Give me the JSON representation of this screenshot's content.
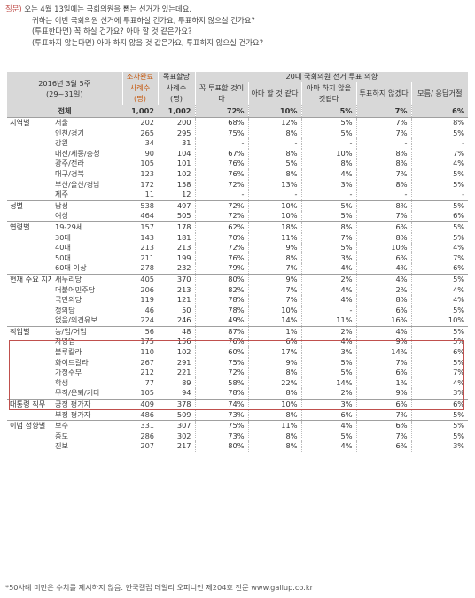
{
  "question": {
    "label": "질문)",
    "lines": [
      "오는 4월 13일에는 국회의원을 뽑는 선거가 있는데요.",
      "귀하는 이번 국회의원 선거에 투표하실 건가요, 투표하지 않으실 건가요?",
      "(투표한다면) 꼭 하실 건가요? 아마 할 것 같은가요?",
      "(투표하지 않는다면) 아마 하지 않을 것 같은가요, 투표하지 않으실 건가요?"
    ]
  },
  "table": {
    "period": "2016년 3월 5주",
    "period_range": "(29~31일)",
    "col_sample_done": "조사완료",
    "col_sample_done_sub": "사례수",
    "col_sample_done_unit": "(명)",
    "col_target": "목표할당",
    "col_target_sub": "사례수",
    "col_target_unit": "(명)",
    "group_header": "20대 국회의원 선거 투표 의향",
    "answer_cols": [
      "꼭 투표할 것이다",
      "아마 할 것 같다",
      "아마 하지 않을것같다",
      "투표하지 않겠다",
      "모름/ 응답거절"
    ],
    "total": {
      "label": "전체",
      "n1": "1,002",
      "n2": "1,002",
      "v": [
        "72%",
        "10%",
        "5%",
        "7%",
        "6%"
      ]
    },
    "sections": [
      {
        "group": "지역별",
        "rows": [
          {
            "label": "서울",
            "n1": "202",
            "n2": "200",
            "v": [
              "68%",
              "12%",
              "5%",
              "7%",
              "8%"
            ]
          },
          {
            "label": "인천/경기",
            "n1": "265",
            "n2": "295",
            "v": [
              "75%",
              "8%",
              "5%",
              "7%",
              "5%"
            ]
          },
          {
            "label": "강원",
            "n1": "34",
            "n2": "31",
            "v": [
              "-",
              "-",
              "-",
              "-",
              "-"
            ]
          },
          {
            "label": "대전/세종/충청",
            "n1": "90",
            "n2": "104",
            "v": [
              "67%",
              "8%",
              "10%",
              "8%",
              "7%"
            ]
          },
          {
            "label": "광주/전라",
            "n1": "105",
            "n2": "101",
            "v": [
              "76%",
              "5%",
              "8%",
              "8%",
              "4%"
            ]
          },
          {
            "label": "대구/경북",
            "n1": "123",
            "n2": "102",
            "v": [
              "76%",
              "8%",
              "4%",
              "7%",
              "5%"
            ]
          },
          {
            "label": "부산/울산/경남",
            "n1": "172",
            "n2": "158",
            "v": [
              "72%",
              "13%",
              "3%",
              "8%",
              "5%"
            ]
          },
          {
            "label": "제주",
            "n1": "11",
            "n2": "12",
            "v": [
              "-",
              "-",
              "-",
              "-",
              "-"
            ]
          }
        ]
      },
      {
        "group": "성별",
        "rows": [
          {
            "label": "남성",
            "n1": "538",
            "n2": "497",
            "v": [
              "72%",
              "10%",
              "5%",
              "8%",
              "5%"
            ]
          },
          {
            "label": "여성",
            "n1": "464",
            "n2": "505",
            "v": [
              "72%",
              "10%",
              "5%",
              "7%",
              "6%"
            ]
          }
        ]
      },
      {
        "group": "연령별",
        "rows": [
          {
            "label": "19-29세",
            "n1": "157",
            "n2": "178",
            "v": [
              "62%",
              "18%",
              "8%",
              "6%",
              "5%"
            ]
          },
          {
            "label": "30대",
            "n1": "143",
            "n2": "181",
            "v": [
              "70%",
              "11%",
              "7%",
              "8%",
              "5%"
            ]
          },
          {
            "label": "40대",
            "n1": "213",
            "n2": "213",
            "v": [
              "72%",
              "9%",
              "5%",
              "10%",
              "4%"
            ]
          },
          {
            "label": "50대",
            "n1": "211",
            "n2": "199",
            "v": [
              "76%",
              "8%",
              "3%",
              "6%",
              "7%"
            ]
          },
          {
            "label": "60대 이상",
            "n1": "278",
            "n2": "232",
            "v": [
              "79%",
              "7%",
              "4%",
              "4%",
              "6%"
            ]
          }
        ]
      },
      {
        "group": "현재 주요 지지 정당별",
        "rows": [
          {
            "label": "새누리당",
            "n1": "405",
            "n2": "370",
            "v": [
              "80%",
              "9%",
              "2%",
              "4%",
              "5%"
            ]
          },
          {
            "label": "더불어민주당",
            "n1": "206",
            "n2": "213",
            "v": [
              "82%",
              "7%",
              "4%",
              "2%",
              "4%"
            ]
          },
          {
            "label": "국민의당",
            "n1": "119",
            "n2": "121",
            "v": [
              "78%",
              "7%",
              "4%",
              "8%",
              "4%"
            ]
          },
          {
            "label": "정의당",
            "n1": "46",
            "n2": "50",
            "v": [
              "78%",
              "10%",
              "-",
              "6%",
              "5%"
            ]
          },
          {
            "label": "없음/의견유보",
            "n1": "224",
            "n2": "246",
            "v": [
              "49%",
              "14%",
              "11%",
              "16%",
              "10%"
            ]
          }
        ]
      },
      {
        "group": "직업별",
        "rows": [
          {
            "label": "농/임/어업",
            "n1": "56",
            "n2": "48",
            "v": [
              "87%",
              "1%",
              "2%",
              "4%",
              "5%"
            ]
          },
          {
            "label": "자영업",
            "n1": "175",
            "n2": "156",
            "v": [
              "76%",
              "6%",
              "4%",
              "9%",
              "5%"
            ]
          },
          {
            "label": "블루칼라",
            "n1": "110",
            "n2": "102",
            "v": [
              "60%",
              "17%",
              "3%",
              "14%",
              "6%"
            ]
          },
          {
            "label": "화이트칼라",
            "n1": "267",
            "n2": "291",
            "v": [
              "75%",
              "9%",
              "5%",
              "7%",
              "5%"
            ]
          },
          {
            "label": "가정주부",
            "n1": "212",
            "n2": "221",
            "v": [
              "72%",
              "8%",
              "5%",
              "6%",
              "7%"
            ]
          },
          {
            "label": "학생",
            "n1": "77",
            "n2": "89",
            "v": [
              "58%",
              "22%",
              "14%",
              "1%",
              "4%"
            ]
          },
          {
            "label": "무직/은퇴/기타",
            "n1": "105",
            "n2": "94",
            "v": [
              "78%",
              "8%",
              "2%",
              "9%",
              "3%"
            ]
          }
        ]
      },
      {
        "group": "대통령 직무",
        "rows": [
          {
            "label": "긍정 평가자",
            "n1": "409",
            "n2": "378",
            "v": [
              "74%",
              "10%",
              "3%",
              "6%",
              "6%"
            ]
          },
          {
            "label": "부정 평가자",
            "n1": "486",
            "n2": "509",
            "v": [
              "73%",
              "8%",
              "6%",
              "7%",
              "5%"
            ]
          }
        ]
      },
      {
        "group": "이념 성향별",
        "rows": [
          {
            "label": "보수",
            "n1": "331",
            "n2": "307",
            "v": [
              "75%",
              "11%",
              "4%",
              "6%",
              "5%"
            ]
          },
          {
            "label": "중도",
            "n1": "286",
            "n2": "302",
            "v": [
              "73%",
              "8%",
              "5%",
              "7%",
              "5%"
            ]
          },
          {
            "label": "진보",
            "n1": "207",
            "n2": "217",
            "v": [
              "80%",
              "8%",
              "4%",
              "6%",
              "3%"
            ]
          }
        ]
      }
    ]
  },
  "footnote": "*50사례 미만은 수치를 제시하지 않음. 한국갤럽 데일리 오피니언 제204호 전문 www.gallup.co.kr",
  "colors": {
    "header_bg": "#d8d8d8",
    "highlight_border": "#c0504d",
    "orange_header": "#c55a11"
  }
}
